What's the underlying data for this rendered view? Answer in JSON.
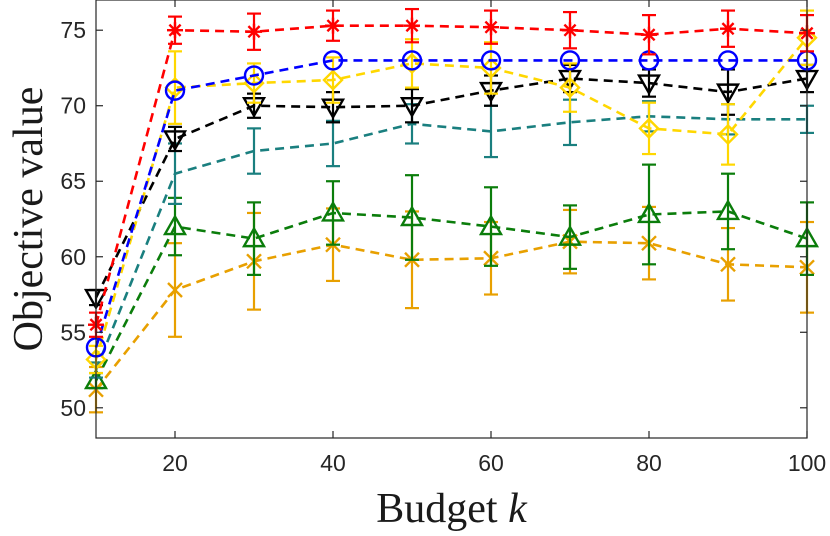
{
  "chart_data": {
    "type": "line",
    "title": "",
    "xlabel": "Budget",
    "xlabel_var": "k",
    "ylabel": "Objective value",
    "xlim": [
      10,
      100
    ],
    "ylim": [
      48,
      77
    ],
    "xticks": [
      20,
      40,
      60,
      80,
      100
    ],
    "yticks": [
      50,
      55,
      60,
      65,
      70,
      75
    ],
    "grid": false,
    "legend": "none",
    "x": [
      10,
      20,
      30,
      40,
      50,
      60,
      70,
      80,
      90,
      100
    ],
    "series": [
      {
        "color": "#ff0000",
        "marker": "asterisk",
        "values": [
          55.5,
          75.0,
          74.9,
          75.3,
          75.3,
          75.2,
          75.0,
          74.7,
          75.1,
          74.8
        ],
        "err": [
          0.8,
          0.9,
          1.2,
          1.0,
          1.1,
          1.1,
          1.2,
          1.3,
          1.2,
          1.2
        ]
      },
      {
        "color": "#0000ff",
        "marker": "circle",
        "values": [
          54.0,
          71.0,
          72.0,
          73.0,
          73.0,
          73.0,
          73.0,
          73.0,
          73.0,
          73.0
        ],
        "err": [
          0,
          0,
          0,
          0,
          0,
          0,
          0,
          0,
          0,
          0
        ]
      },
      {
        "color": "#ffd700",
        "marker": "diamond",
        "values": [
          53.2,
          71.2,
          71.5,
          71.7,
          72.8,
          72.5,
          71.2,
          68.5,
          68.1,
          74.5
        ],
        "err": [
          0.9,
          2.4,
          1.3,
          1.5,
          1.6,
          1.7,
          1.6,
          1.7,
          2.0,
          1.8
        ]
      },
      {
        "color": "#000000",
        "marker": "triangle-down",
        "values": [
          57.3,
          67.8,
          70.0,
          69.9,
          70.0,
          71.0,
          71.8,
          71.5,
          70.9,
          71.8
        ],
        "err": [
          0.5,
          0.8,
          0.8,
          1.0,
          1.1,
          1.0,
          0.9,
          0.9,
          1.5,
          0.9
        ]
      },
      {
        "color": "#1a7f7f",
        "marker": "none",
        "values": [
          52.5,
          65.5,
          67.0,
          67.5,
          68.8,
          68.3,
          68.9,
          69.3,
          69.1,
          69.1
        ],
        "err": [
          0.5,
          2.0,
          1.5,
          1.5,
          1.3,
          1.7,
          1.5,
          1.0,
          1.0,
          0.9
        ]
      },
      {
        "color": "#0b7d0b",
        "marker": "triangle-up",
        "values": [
          51.8,
          62.0,
          61.2,
          62.9,
          62.6,
          62.0,
          61.3,
          62.8,
          63.0,
          61.2
        ],
        "err": [
          0.5,
          1.9,
          2.4,
          2.1,
          2.8,
          2.6,
          2.1,
          3.3,
          2.5,
          2.4
        ]
      },
      {
        "color": "#e8a000",
        "marker": "x",
        "values": [
          51.2,
          57.8,
          59.7,
          60.8,
          59.8,
          59.9,
          61.0,
          60.9,
          59.5,
          59.3
        ],
        "err": [
          1.5,
          3.1,
          3.2,
          2.4,
          3.2,
          2.4,
          2.1,
          2.4,
          2.4,
          3.0
        ]
      }
    ]
  }
}
